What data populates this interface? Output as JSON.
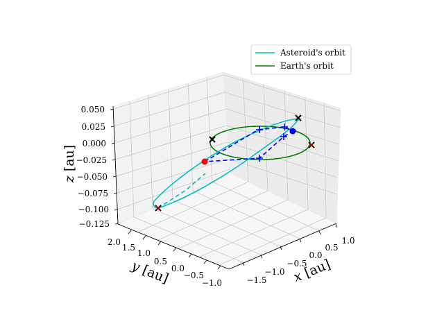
{
  "chart_data": {
    "type": "line",
    "legend": {
      "placement": "top-right",
      "entries": [
        {
          "label": "Asteroid's orbit",
          "color": "#00bfbf"
        },
        {
          "label": "Earth's orbit",
          "color": "#008000"
        }
      ]
    },
    "axes": {
      "x": {
        "label_var": "x",
        "label_unit": "[au]",
        "ticks": [
          "−1.5",
          "−1.0",
          "−0.5",
          "0.0",
          "0.5",
          "1.0"
        ],
        "range": [
          -1.7,
          1.1
        ]
      },
      "y": {
        "label_var": "y",
        "label_unit": "[au]",
        "ticks": [
          "−1.0",
          "−0.5",
          "0.0",
          "0.5",
          "1.0",
          "1.5",
          "2.0"
        ],
        "range": [
          -1.1,
          2.1
        ]
      },
      "z": {
        "label_var": "z",
        "label_unit": "[au]",
        "ticks": [
          "−0.125",
          "−0.100",
          "−0.075",
          "−0.050",
          "−0.025",
          "0.000",
          "0.025",
          "0.050"
        ],
        "range": [
          -0.125,
          0.05
        ]
      }
    },
    "grid": true,
    "series": [
      {
        "name": "Asteroid's orbit",
        "color": "#00bfbf",
        "style": "solid",
        "description_points": "elongated ellipse from (x≈-0.85,y≈2.0,z≈-0.11) to (x≈0.35,y≈-1.1,z≈0.04)"
      },
      {
        "name": "Earth's orbit",
        "color": "#008000",
        "style": "solid",
        "radius_au": 1.0
      }
    ],
    "markers": {
      "black_x": 4,
      "red_x": 2,
      "blue_plus": 4,
      "red_dot": 1,
      "blue_dot": 1
    }
  }
}
